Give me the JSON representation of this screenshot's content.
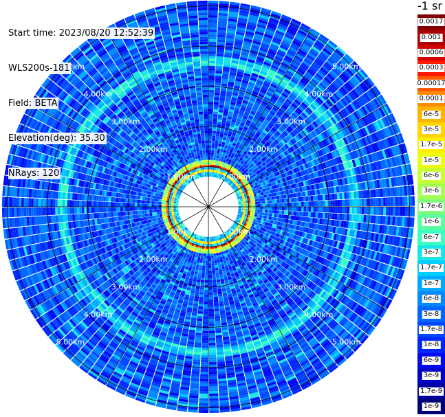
{
  "header": {
    "start_time": "Start time: 2023/08/20 12:52:39",
    "instrument": "WLS200s-181",
    "field": "Field: BETA",
    "elevation": "Elevation(deg): 35.30",
    "nrays": "NRays: 120"
  },
  "colorbar": {
    "unit": "-1 sr",
    "labels": [
      "0.0017",
      "0.001",
      "0.0006",
      "0.0003",
      "0.00017",
      "0.0001",
      "6e-5",
      "3e-5",
      "1.7e-5",
      "1e-5",
      "6e-6",
      "3e-6",
      "1.7e-6",
      "1e-6",
      "6e-7",
      "3e-7",
      "1.7e-7",
      "1e-7",
      "6e-8",
      "3e-8",
      "1.7e-8",
      "1e-8",
      "6e-9",
      "3e-9",
      "1.7e-9",
      "1e-9"
    ],
    "colors": [
      "#7f0000",
      "#a80000",
      "#d40000",
      "#ff1a00",
      "#ff5a00",
      "#ff8c00",
      "#ffb400",
      "#ffd400",
      "#fff000",
      "#eaff12",
      "#c8ff32",
      "#a6ff54",
      "#80ff7a",
      "#5cffa0",
      "#3cffc2",
      "#1ae6e6",
      "#00ccff",
      "#00a8ff",
      "#0088ff",
      "#0066ff",
      "#0046ff",
      "#0026ff",
      "#0008f0",
      "#0000c8",
      "#00009e",
      "#000078"
    ]
  },
  "range_labels": [
    "1.00km",
    "2.00km",
    "3.00km",
    "4.00km",
    "5.00km"
  ],
  "chart_data": {
    "type": "heatmap",
    "field": "BETA",
    "rays": 120,
    "elevation_deg": 35.3,
    "range_rings_km": [
      1,
      2,
      3,
      4,
      5
    ],
    "max_range_km": 5.1,
    "features": [
      {
        "name": "near-field ring",
        "range_km": 1.0,
        "level": "1e-4 to 1e-3"
      },
      {
        "name": "aerosol layer ring",
        "range_km": 3.6,
        "level": "1e-7"
      }
    ],
    "background_level": "1e-8 to 1e-9"
  }
}
